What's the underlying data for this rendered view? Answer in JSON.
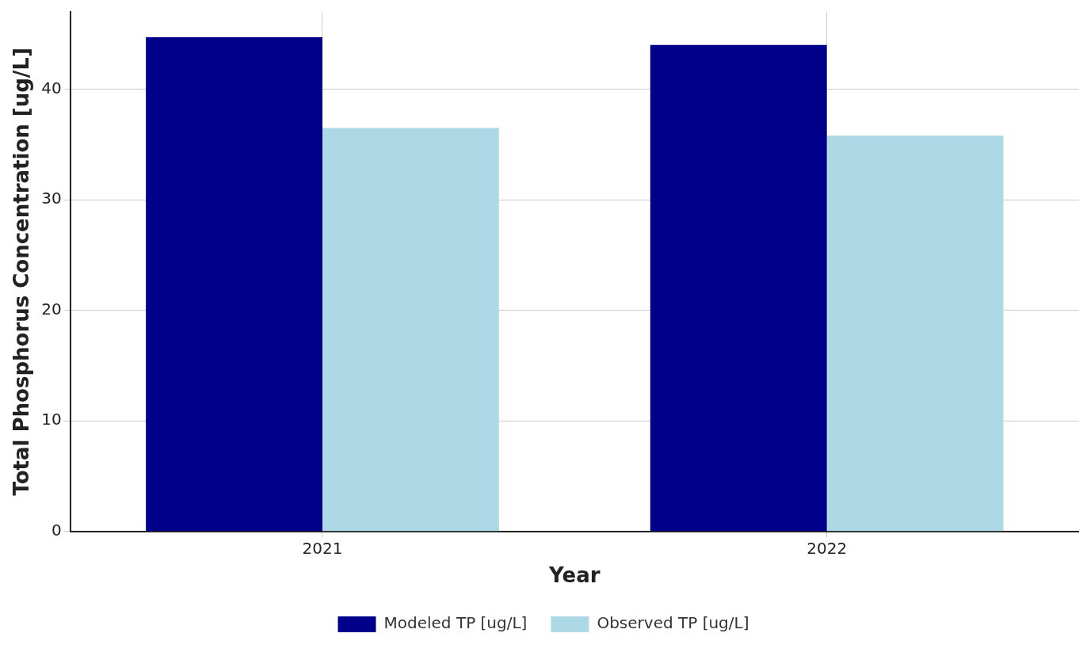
{
  "chart_data": {
    "type": "bar",
    "xlabel": "Year",
    "ylabel": "Total Phosphorus Concentration [ug/L]",
    "categories": [
      "2021",
      "2022"
    ],
    "series": [
      {
        "name": "Modeled TP [ug/L]",
        "color": "#00008b",
        "values": [
          44.7,
          44.0
        ]
      },
      {
        "name": "Observed TP [ug/L]",
        "color": "#add8e6",
        "values": [
          36.5,
          35.8
        ]
      }
    ],
    "ylim": [
      0,
      47
    ],
    "yticks": [
      0,
      10,
      20,
      30,
      40
    ],
    "grid": true,
    "legend": "bottom"
  }
}
